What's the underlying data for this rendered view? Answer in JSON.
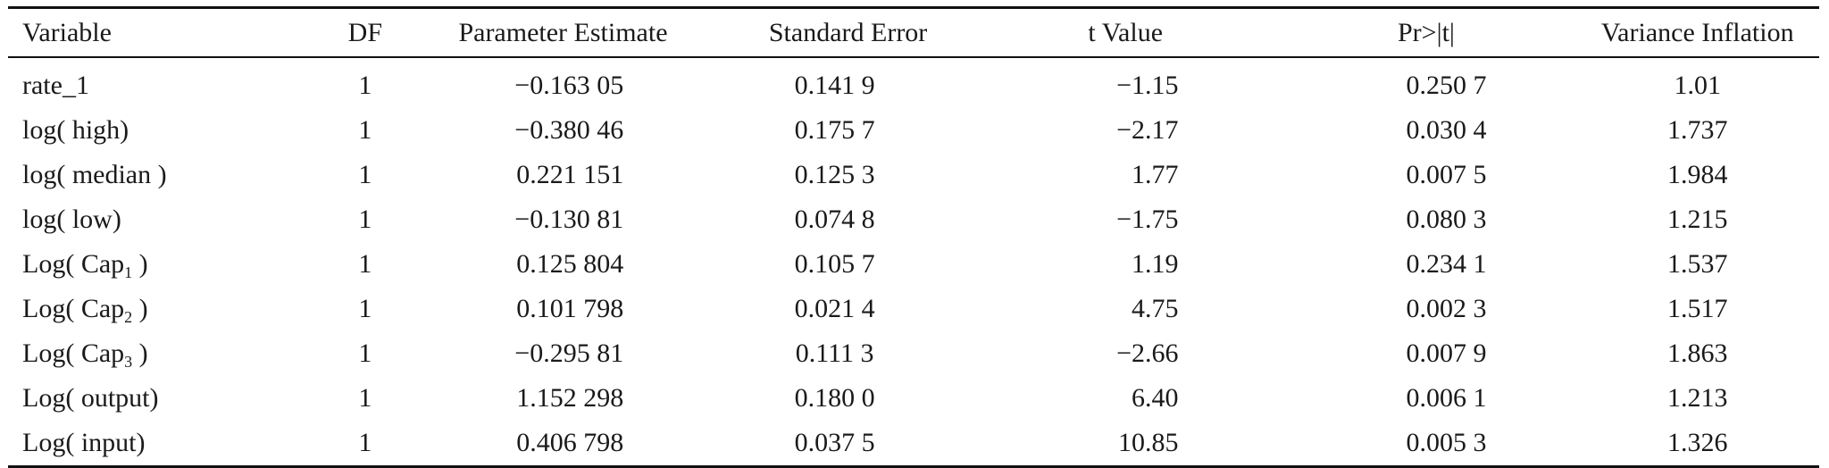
{
  "table": {
    "headers": {
      "variable": "Variable",
      "df": "DF",
      "estimate": "Parameter Estimate",
      "std_error": "Standard Error",
      "t_value": "t Value",
      "p_value": "Pr>|t|",
      "vif": "Variance Inflation"
    },
    "rows": [
      {
        "variable": "rate_1",
        "sub": "",
        "close": "",
        "df": "1",
        "estimate": "−0.163 05",
        "std_error": "0.141 9",
        "t_value": "−1.15",
        "p_value": "0.250 7",
        "vif": "1.01"
      },
      {
        "variable": "log( high)",
        "sub": "",
        "close": "",
        "df": "1",
        "estimate": "−0.380 46",
        "std_error": "0.175 7",
        "t_value": "−2.17",
        "p_value": "0.030 4",
        "vif": "1.737"
      },
      {
        "variable": "log( median )",
        "sub": "",
        "close": "",
        "df": "1",
        "estimate": "0.221 151",
        "std_error": "0.125 3",
        "t_value": "1.77",
        "p_value": "0.007 5",
        "vif": "1.984"
      },
      {
        "variable": "log( low)",
        "sub": "",
        "close": "",
        "df": "1",
        "estimate": "−0.130 81",
        "std_error": "0.074 8",
        "t_value": "−1.75",
        "p_value": "0.080 3",
        "vif": "1.215"
      },
      {
        "variable": "Log( Cap",
        "sub": "1",
        "close": " )",
        "df": "1",
        "estimate": "0.125 804",
        "std_error": "0.105 7",
        "t_value": "1.19",
        "p_value": "0.234 1",
        "vif": "1.537"
      },
      {
        "variable": "Log( Cap",
        "sub": "2",
        "close": " )",
        "df": "1",
        "estimate": "0.101 798",
        "std_error": "0.021 4",
        "t_value": "4.75",
        "p_value": "0.002 3",
        "vif": "1.517"
      },
      {
        "variable": "Log( Cap",
        "sub": "3",
        "close": " )",
        "df": "1",
        "estimate": "−0.295 81",
        "std_error": "0.111 3",
        "t_value": "−2.66",
        "p_value": "0.007 9",
        "vif": "1.863"
      },
      {
        "variable": "Log( output)",
        "sub": "",
        "close": "",
        "df": "1",
        "estimate": "1.152 298",
        "std_error": "0.180 0",
        "t_value": "6.40",
        "p_value": "0.006 1",
        "vif": "1.213"
      },
      {
        "variable": "Log( input)",
        "sub": "",
        "close": "",
        "df": "1",
        "estimate": "0.406 798",
        "std_error": "0.037 5",
        "t_value": "10.85",
        "p_value": "0.005 3",
        "vif": "1.326"
      }
    ]
  }
}
